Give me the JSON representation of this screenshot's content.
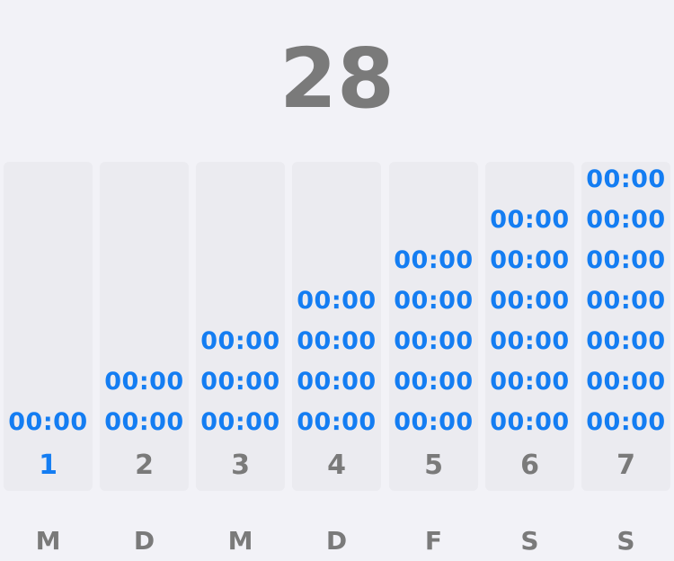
{
  "header": {
    "count": "28"
  },
  "columns": [
    {
      "day_number": "1",
      "weekday": "M",
      "active": true,
      "times": [
        "00:00"
      ]
    },
    {
      "day_number": "2",
      "weekday": "D",
      "active": false,
      "times": [
        "00:00",
        "00:00"
      ]
    },
    {
      "day_number": "3",
      "weekday": "M",
      "active": false,
      "times": [
        "00:00",
        "00:00",
        "00:00"
      ]
    },
    {
      "day_number": "4",
      "weekday": "D",
      "active": false,
      "times": [
        "00:00",
        "00:00",
        "00:00",
        "00:00"
      ]
    },
    {
      "day_number": "5",
      "weekday": "F",
      "active": false,
      "times": [
        "00:00",
        "00:00",
        "00:00",
        "00:00",
        "00:00"
      ]
    },
    {
      "day_number": "6",
      "weekday": "S",
      "active": false,
      "times": [
        "00:00",
        "00:00",
        "00:00",
        "00:00",
        "00:00",
        "00:00"
      ]
    },
    {
      "day_number": "7",
      "weekday": "S",
      "active": false,
      "times": [
        "00:00",
        "00:00",
        "00:00",
        "00:00",
        "00:00",
        "00:00",
        "00:00"
      ]
    }
  ],
  "colors": {
    "background": "#f2f2f7",
    "column_background": "#ebebf0",
    "accent": "#147df2",
    "muted_text": "#7a7a7a"
  }
}
